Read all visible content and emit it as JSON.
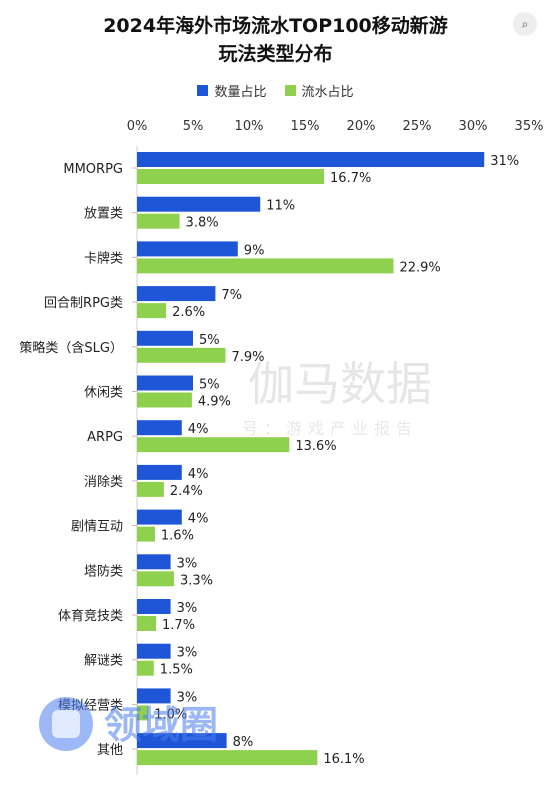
{
  "chart_data": {
    "type": "bar",
    "orientation": "horizontal",
    "title": "2024年海外市场流水TOP100移动新游",
    "subtitle": "玩法类型分布",
    "categories": [
      "MMORPG",
      "放置类",
      "卡牌类",
      "回合制RPG类",
      "策略类（含SLG）",
      "休闲类",
      "ARPG",
      "消除类",
      "剧情互动",
      "塔防类",
      "体育竞技类",
      "解谜类",
      "模拟经营类",
      "其他"
    ],
    "series": [
      {
        "name": "数量占比",
        "color": "#1f56d8",
        "values": [
          31,
          11,
          9,
          7,
          5,
          5,
          4,
          4,
          4,
          3,
          3,
          3,
          3,
          8
        ],
        "labels": [
          "31%",
          "11%",
          "9%",
          "7%",
          "5%",
          "5%",
          "4%",
          "4%",
          "4%",
          "3%",
          "3%",
          "3%",
          "3%",
          "8%"
        ]
      },
      {
        "name": "流水占比",
        "color": "#8fd14f",
        "values": [
          16.7,
          3.8,
          22.9,
          2.6,
          7.9,
          4.9,
          13.6,
          2.4,
          1.6,
          3.3,
          1.7,
          1.5,
          1.0,
          16.1
        ],
        "labels": [
          "16.7%",
          "3.8%",
          "22.9%",
          "2.6%",
          "7.9%",
          "4.9%",
          "13.6%",
          "2.4%",
          "1.6%",
          "3.3%",
          "1.7%",
          "1.5%",
          "1.0%",
          "16.1%"
        ]
      }
    ],
    "xlim": [
      0,
      35
    ],
    "xticks": [
      "0%",
      "5%",
      "10%",
      "15%",
      "20%",
      "25%",
      "30%",
      "35%"
    ],
    "legend_position": "top",
    "grid": false
  },
  "watermark_text": "伽马数据",
  "watermark_sub": "号：游戏产业报告",
  "logo_text": "领域圈"
}
